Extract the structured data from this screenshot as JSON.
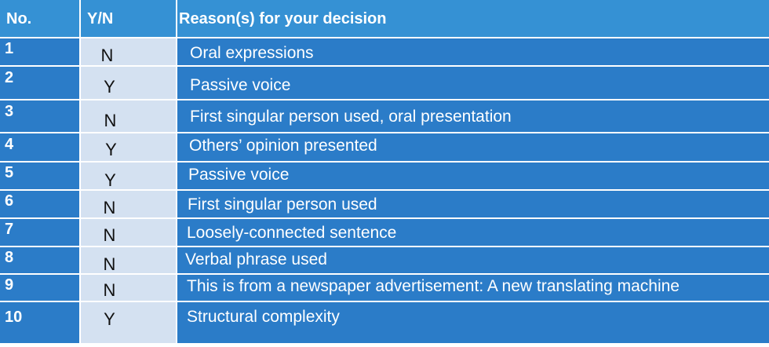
{
  "table": {
    "headers": [
      "No.",
      "Y/N",
      "Reason(s) for your decision"
    ],
    "rows": [
      {
        "no": "1",
        "yn": "N",
        "reason": "Oral expressions"
      },
      {
        "no": "2",
        "yn": "Y",
        "reason": "Passive voice"
      },
      {
        "no": "3",
        "yn": "N",
        "reason": "First singular person used, oral presentation"
      },
      {
        "no": "4",
        "yn": "Y",
        "reason": "Others’ opinion presented"
      },
      {
        "no": "5",
        "yn": "Y",
        "reason": "Passive voice"
      },
      {
        "no": "6",
        "yn": "N",
        "reason": "First singular person used"
      },
      {
        "no": "7",
        "yn": "N",
        "reason": "Loosely-connected sentence"
      },
      {
        "no": "8",
        "yn": "N",
        "reason": "Verbal phrase used"
      },
      {
        "no": "9",
        "yn": "N",
        "reason": "This is from a newspaper advertisement: A new translating machine"
      },
      {
        "no": "10",
        "yn": "Y",
        "reason": "Structural complexity"
      }
    ]
  },
  "colors": {
    "header_bg": "#3591d4",
    "body_bg": "#2b7cc8",
    "yn_bg": "#d4e1f1",
    "border": "#ffffff"
  }
}
